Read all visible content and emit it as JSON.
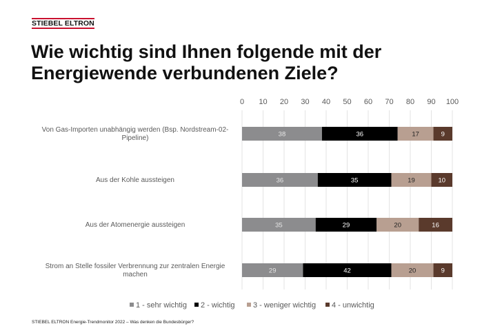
{
  "header": {
    "logo": "STIEBEL ELTRON",
    "title_line1": "Wie wichtig sind Ihnen folgende mit der",
    "title_line2": "Energiewende verbundenen Ziele?"
  },
  "footer": {
    "text": "STIEBEL ELTRON Energie-Trendmonitor 2022 – Was denken die Bundesbürger?"
  },
  "chart_data": {
    "type": "bar",
    "orientation": "horizontal",
    "stacked": true,
    "title": "Wie wichtig sind Ihnen folgende mit der Energiewende verbundenen Ziele?",
    "xlabel": "",
    "ylabel": "",
    "xlim": [
      0,
      100
    ],
    "xticks": [
      0,
      10,
      20,
      30,
      40,
      50,
      60,
      70,
      80,
      90,
      100
    ],
    "grid": true,
    "legend_position": "bottom",
    "categories": [
      [
        "Von Gas-Importen unabhängig werden (Bsp. Nordstream-02-",
        "Pipeline)"
      ],
      [
        "Aus der Kohle aussteigen"
      ],
      [
        "Aus der Atomenergie aussteigen"
      ],
      [
        "Strom an Stelle fossiler Verbrennung zur zentralen Energie",
        "machen"
      ]
    ],
    "series": [
      {
        "name": "1 - sehr wichtig",
        "color": "#8c8c8e",
        "label_color": "#e6e6e6",
        "values": [
          38,
          36,
          35,
          29
        ]
      },
      {
        "name": "2 - wichtig",
        "color": "#000000",
        "label_color": "#ffffff",
        "values": [
          36,
          35,
          29,
          42
        ]
      },
      {
        "name": "3 - weniger wichtig",
        "color": "#b89f91",
        "label_color": "#222222",
        "values": [
          17,
          19,
          20,
          20
        ]
      },
      {
        "name": "4 - unwichtig",
        "color": "#5a3a2c",
        "label_color": "#ffffff",
        "values": [
          9,
          10,
          16,
          9
        ]
      }
    ]
  }
}
